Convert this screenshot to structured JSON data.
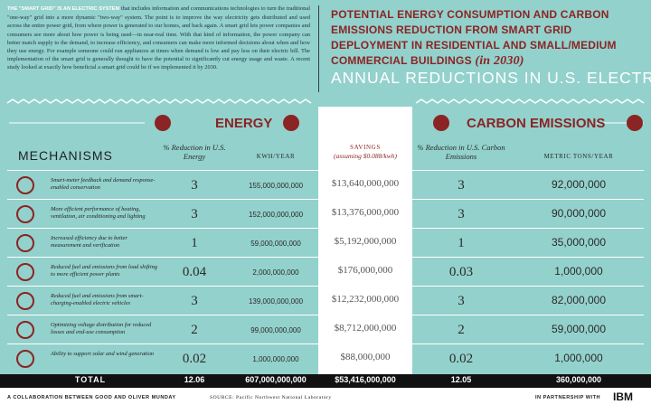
{
  "intro": {
    "lead": "THE \"SMART GRID\" IS AN ELECTRIC SYSTEM",
    "text": "that includes information and communications technologies to turn the traditional \"one-way\" grid into a more dynamic \"two-way\" system. The point is to improve the way electricity gets distributed and used across the entire power grid, from where power is generated to our homes, and back again. A smart grid lets power companies and consumers see more about how power is being used—in near-real time. With that kind of information, the power company can better match supply to the demand, to increase efficiency, and consumers can make more informed decisions about when and how they use energy. For example someone could run appliances at times when demand is low and pay less on their electric bill. The implementation of the smart grid is generally thought to have the potential to significantly cut energy usage and waste. A recent study looked at exactly how beneficial a smart grid could be if we implemented it by 2030."
  },
  "header": {
    "title": "POTENTIAL ENERGY CONSUMPTION AND CARBON EMISSIONS REDUCTION FROM SMART GRID DEPLOYMENT IN RESIDENTIAL AND SMALL/MEDIUM COMMERCIAL BUILDINGS",
    "year": "(in 2030)",
    "subtitle": "ANNUAL REDUCTIONS IN U.S. ELECTRICITY"
  },
  "sections": {
    "energy": "ENERGY",
    "carbon": "CARBON EMISSIONS"
  },
  "table": {
    "headers": [
      "MECHANISMS",
      "% Reduction in U.S. Energy",
      "KWH/YEAR",
      "SAVINGS",
      "% Reduction in U.S. Carbon Emissions",
      "METRIC TONS/YEAR"
    ],
    "savings_note": "(assuming $0.088/kwh)",
    "rows": [
      [
        "Smart-meter feedback and demand response-enabled conservation",
        "3",
        "155,000,000,000",
        "$13,640,000,000",
        "3",
        "92,000,000"
      ],
      [
        "More efficient performance of heating, ventilation, air conditioning and lighting",
        "3",
        "152,000,000,000",
        "$13,376,000,000",
        "3",
        "90,000,000"
      ],
      [
        "Increased efficiency due to better measurement and verification",
        "1",
        "59,000,000,000",
        "$5,192,000,000",
        "1",
        "35,000,000"
      ],
      [
        "Reduced fuel and emissions from load shifting to more efficient power plants",
        "0.04",
        "2,000,000,000",
        "$176,000,000",
        "0.03",
        "1,000,000"
      ],
      [
        "Reduced fuel and emissions from smart-charging-enabled electric vehicles",
        "3",
        "139,000,000,000",
        "$12,232,000,000",
        "3",
        "82,000,000"
      ],
      [
        "Optimizing voltage distribution for reduced losses and end-use consumption",
        "2",
        "99,000,000,000",
        "$8,712,000,000",
        "2",
        "59,000,000"
      ],
      [
        "Ability to support solar and wind generation",
        "0.02",
        "1,000,000,000",
        "$88,000,000",
        "0.02",
        "1,000,000"
      ]
    ],
    "total": [
      "TOTAL",
      "12.06",
      "607,000,000,000",
      "$53,416,000,000",
      "12.05",
      "360,000,000"
    ]
  },
  "footer": {
    "credit": "A COLLABORATION BETWEEN GOOD AND OLIVER MUNDAY",
    "source": "SOURCE: Pacific Northwest National Laboratory",
    "partner": "IN PARTNERSHIP WITH",
    "logo": "IBM"
  }
}
